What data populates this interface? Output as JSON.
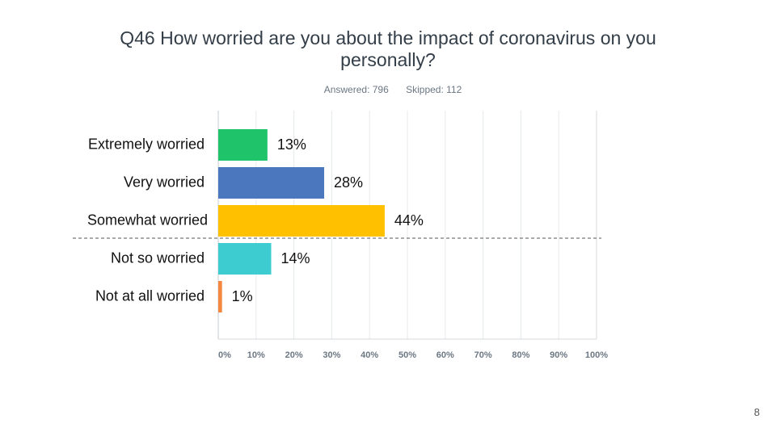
{
  "slide": {
    "page_number": "8"
  },
  "chart_data": {
    "type": "bar",
    "orientation": "horizontal",
    "title": "Q46 How worried are you about the impact of coronavirus on you personally?",
    "answered": "Answered: 796",
    "skipped": "Skipped: 112",
    "categories": [
      "Extremely worried",
      "Very worried",
      "Somewhat worried",
      "Not so worried",
      "Not at all worried"
    ],
    "values": [
      13,
      28,
      44,
      14,
      1
    ],
    "value_labels": [
      "13%",
      "28%",
      "44%",
      "14%",
      "1%"
    ],
    "colors": [
      "#1ec36a",
      "#4a77bd",
      "#ffc000",
      "#3dcdd0",
      "#f5883e"
    ],
    "xlim": [
      0,
      100
    ],
    "xticks": [
      "0%",
      "10%",
      "20%",
      "30%",
      "40%",
      "50%",
      "60%",
      "70%",
      "80%",
      "90%",
      "100%"
    ],
    "grid": true,
    "divider_after_category": "Somewhat worried"
  }
}
